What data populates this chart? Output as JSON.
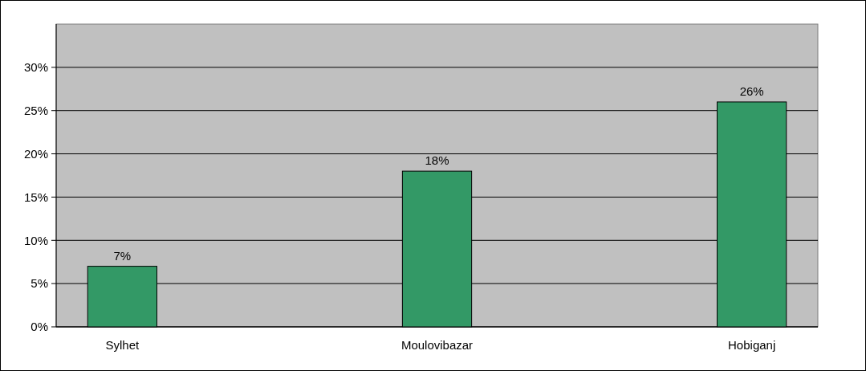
{
  "chart_data": {
    "type": "bar",
    "categories": [
      "Sylhet",
      "Moulovibazar",
      "Hobiganj"
    ],
    "values": [
      7,
      18,
      26
    ],
    "color": "#339966",
    "value_labels": [
      "7%",
      "18%",
      "26%"
    ],
    "grid": "y",
    "ylim": [
      0,
      35
    ],
    "yticks": [
      {
        "value": 0,
        "label": "0%"
      },
      {
        "value": 5,
        "label": "5%"
      },
      {
        "value": 10,
        "label": "10%"
      },
      {
        "value": 15,
        "label": "15%"
      },
      {
        "value": 20,
        "label": "20%"
      },
      {
        "value": 25,
        "label": "25%"
      },
      {
        "value": 30,
        "label": "30%"
      }
    ]
  }
}
